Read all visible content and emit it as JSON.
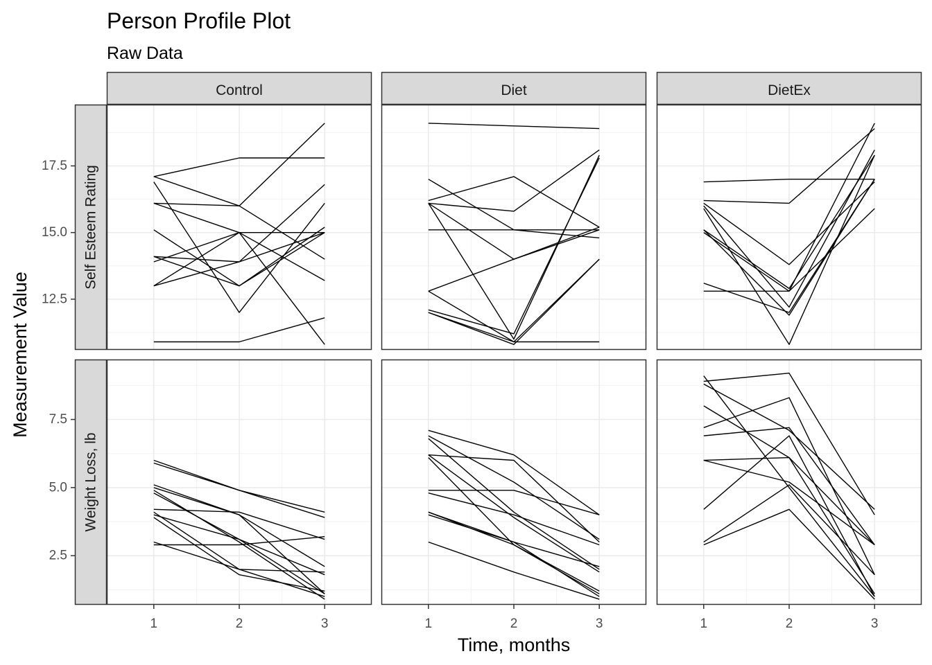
{
  "chart_data": {
    "type": "line",
    "title": "Person Profile Plot",
    "subtitle": "Raw Data",
    "xlabel": "Time, months",
    "ylabel": "Measurement Value",
    "x_ticks": [
      1,
      2,
      3
    ],
    "xlim": [
      0.45,
      3.55
    ],
    "grid": true,
    "legend": "none",
    "line_color": "#000000",
    "columns": [
      "Control",
      "Diet",
      "DietEx"
    ],
    "rows": [
      {
        "label": "Self Esteem Rating",
        "ylim": [
          10.6,
          19.8
        ],
        "y_ticks": [
          12.5,
          15.0,
          17.5
        ],
        "y_tick_labels": [
          "12.5",
          "15.0",
          "17.5"
        ]
      },
      {
        "label": "Weight Loss, lb",
        "ylim": [
          0.7,
          9.7
        ],
        "y_ticks": [
          2.5,
          5.0,
          7.5
        ],
        "y_tick_labels": [
          "2.5",
          "5.0",
          "7.5"
        ]
      }
    ],
    "panels": [
      {
        "row": "Self Esteem Rating",
        "column": "Control",
        "x": [
          1,
          2,
          3
        ],
        "series": [
          [
            17.1,
            16.0,
            14.0
          ],
          [
            17.1,
            17.8,
            17.8
          ],
          [
            16.9,
            12.0,
            16.1
          ],
          [
            16.1,
            16.0,
            19.1
          ],
          [
            16.1,
            15.0,
            15.0
          ],
          [
            15.1,
            13.0,
            15.0
          ],
          [
            14.1,
            13.0,
            15.2
          ],
          [
            14.1,
            13.9,
            16.8
          ],
          [
            13.9,
            15.0,
            13.2
          ],
          [
            13.0,
            13.9,
            15.0
          ],
          [
            13.0,
            15.0,
            10.8
          ],
          [
            10.9,
            10.9,
            11.8
          ]
        ]
      },
      {
        "row": "Self Esteem Rating",
        "column": "Diet",
        "x": [
          1,
          2,
          3
        ],
        "series": [
          [
            19.1,
            19.0,
            18.9
          ],
          [
            17.0,
            15.1,
            15.1
          ],
          [
            16.2,
            17.1,
            15.2
          ],
          [
            16.1,
            15.8,
            18.1
          ],
          [
            16.1,
            11.0,
            17.9
          ],
          [
            15.1,
            15.1,
            14.8
          ],
          [
            12.8,
            14.0,
            15.1
          ],
          [
            12.8,
            10.9,
            10.9
          ],
          [
            12.1,
            11.2,
            17.8
          ],
          [
            12.0,
            10.8,
            14.0
          ],
          [
            12.0,
            10.9,
            14.0
          ],
          [
            16.1,
            14.0,
            15.2
          ]
        ]
      },
      {
        "row": "Self Esteem Rating",
        "column": "DietEx",
        "x": [
          1,
          2,
          3
        ],
        "series": [
          [
            16.9,
            17.0,
            17.0
          ],
          [
            16.2,
            16.1,
            18.9
          ],
          [
            16.1,
            13.8,
            16.9
          ],
          [
            16.0,
            12.2,
            18.1
          ],
          [
            15.1,
            12.9,
            17.9
          ],
          [
            15.0,
            12.8,
            19.1
          ],
          [
            15.1,
            11.9,
            17.0
          ],
          [
            15.9,
            10.8,
            17.9
          ],
          [
            13.1,
            12.0,
            17.0
          ],
          [
            12.8,
            12.8,
            15.9
          ]
        ]
      },
      {
        "row": "Weight Loss, lb",
        "column": "Control",
        "x": [
          1,
          2,
          3
        ],
        "series": [
          [
            6.0,
            4.9,
            3.9
          ],
          [
            5.9,
            4.9,
            4.1
          ],
          [
            5.1,
            4.0,
            2.1
          ],
          [
            5.0,
            4.0,
            1.1
          ],
          [
            4.9,
            3.0,
            0.9
          ],
          [
            4.2,
            4.1,
            3.1
          ],
          [
            4.1,
            2.0,
            1.9
          ],
          [
            4.0,
            3.1,
            1.8
          ],
          [
            3.9,
            1.8,
            1.2
          ],
          [
            3.0,
            2.0,
            1.0
          ],
          [
            2.9,
            2.9,
            3.2
          ],
          [
            4.8,
            3.1,
            1.1
          ]
        ]
      },
      {
        "row": "Weight Loss, lb",
        "column": "Diet",
        "x": [
          1,
          2,
          3
        ],
        "series": [
          [
            7.1,
            6.2,
            4.0
          ],
          [
            6.9,
            5.2,
            3.1
          ],
          [
            6.8,
            4.1,
            2.0
          ],
          [
            6.2,
            6.0,
            3.0
          ],
          [
            6.1,
            2.9,
            1.1
          ],
          [
            4.9,
            4.9,
            4.0
          ],
          [
            4.8,
            4.0,
            2.9
          ],
          [
            4.1,
            3.0,
            2.1
          ],
          [
            4.0,
            3.0,
            1.0
          ],
          [
            3.0,
            1.9,
            0.9
          ],
          [
            6.2,
            3.9,
            1.9
          ],
          [
            4.1,
            2.9,
            1.2
          ]
        ]
      },
      {
        "row": "Weight Loss, lb",
        "column": "DietEx",
        "x": [
          1,
          2,
          3
        ],
        "series": [
          [
            9.1,
            5.0,
            1.0
          ],
          [
            8.9,
            9.2,
            4.0
          ],
          [
            8.8,
            7.1,
            4.2
          ],
          [
            8.0,
            6.1,
            2.9
          ],
          [
            7.2,
            8.3,
            1.8
          ],
          [
            6.9,
            7.2,
            2.9
          ],
          [
            6.0,
            6.1,
            1.1
          ],
          [
            6.0,
            5.2,
            2.9
          ],
          [
            4.2,
            6.9,
            1.0
          ],
          [
            3.0,
            5.1,
            1.8
          ],
          [
            2.9,
            4.2,
            0.9
          ]
        ]
      }
    ]
  }
}
